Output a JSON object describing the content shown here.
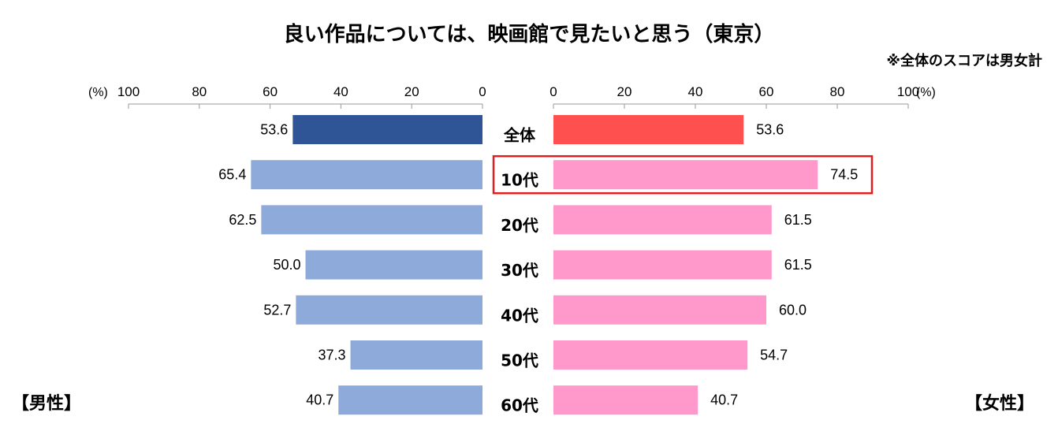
{
  "chart_data": {
    "type": "bar",
    "title": "良い作品については、映画館で見たいと思う（東京）",
    "note": "※全体のスコアは男女計",
    "unit": "(%)",
    "categories": [
      "全体",
      "10代",
      "20代",
      "30代",
      "40代",
      "50代",
      "60代"
    ],
    "series": [
      {
        "name": "【男性】",
        "values": [
          53.6,
          65.4,
          62.5,
          50.0,
          52.7,
          37.3,
          40.7
        ]
      },
      {
        "name": "【女性】",
        "values": [
          53.6,
          74.5,
          61.5,
          61.5,
          60.0,
          54.7,
          40.7
        ]
      }
    ],
    "value_labels": {
      "male": [
        "53.6",
        "65.4",
        "62.5",
        "50.0",
        "52.7",
        "37.3",
        "40.7"
      ],
      "female": [
        "53.6",
        "74.5",
        "61.5",
        "61.5",
        "60.0",
        "54.7",
        "40.7"
      ]
    },
    "ticks": [
      "0",
      "20",
      "40",
      "60",
      "80",
      "100"
    ],
    "xlim": [
      0,
      100
    ],
    "highlight_category": "10代",
    "colors": {
      "total_male": "#2f5597",
      "male": "#8eaadb",
      "total_female": "#ff5050",
      "female": "#ff99cc",
      "highlight": "#e02020"
    }
  }
}
